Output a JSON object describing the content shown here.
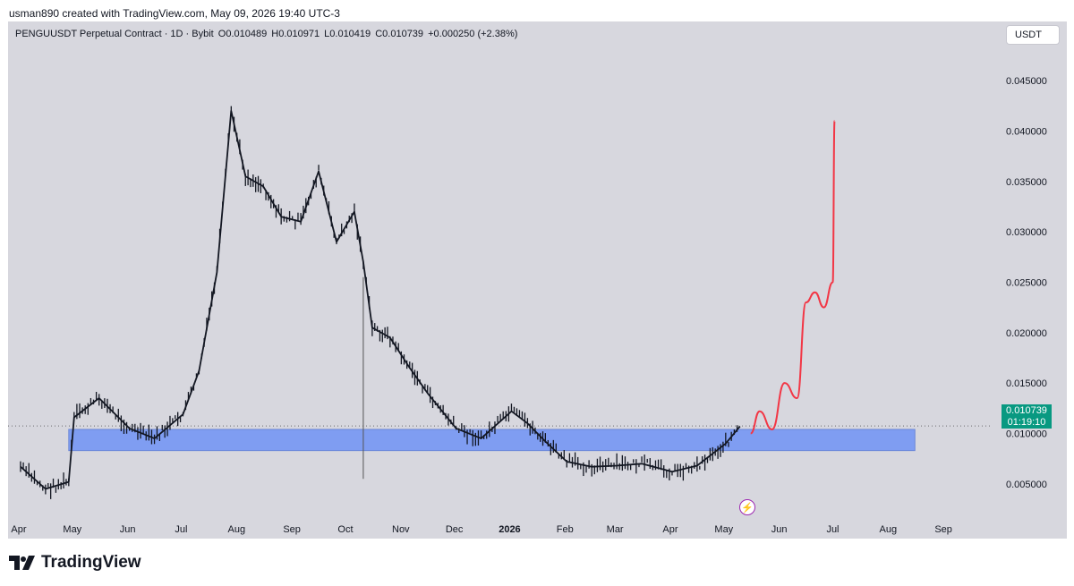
{
  "credit": "usman890 created with TradingView.com, May 09, 2026 19:40 UTC-3",
  "legend": {
    "symbol": "PENGUUSDT Perpetual Contract · 1D · Bybit",
    "open": "O0.010489",
    "high": "H0.010971",
    "low": "L0.010419",
    "close": "C0.010739",
    "change": "+0.000250 (+2.38%)"
  },
  "currency_button": "USDT",
  "price_tag": {
    "price": "0.010739",
    "countdown": "01:19:10"
  },
  "logo_text": "TradingView",
  "colors": {
    "background": "#d7d7de",
    "candle": "#131722",
    "zone": "#7f9df2",
    "forecast": "#f23645",
    "price_tag": "#089981",
    "event_icon": "#9c27b0"
  },
  "icons": {
    "event": "lightning-icon",
    "logo": "tradingview-logo-icon"
  },
  "chart_data": {
    "type": "line",
    "title": "",
    "xlabel": "",
    "ylabel": "",
    "ylim": [
      0.0025,
      0.0482
    ],
    "y_ticks": [
      "0.005000",
      "0.010000",
      "0.015000",
      "0.020000",
      "0.025000",
      "0.030000",
      "0.035000",
      "0.040000",
      "0.045000"
    ],
    "x_ticks": [
      "Apr",
      "May",
      "Jun",
      "Jul",
      "Aug",
      "Sep",
      "Oct",
      "Nov",
      "Dec",
      "2026",
      "Feb",
      "Mar",
      "Apr",
      "May",
      "Jun",
      "Jul",
      "Aug",
      "Sep"
    ],
    "x": [
      "2025-04-01",
      "2025-04-15",
      "2025-04-28",
      "2025-05-01",
      "2025-05-15",
      "2025-06-01",
      "2025-06-15",
      "2025-07-01",
      "2025-07-10",
      "2025-07-20",
      "2025-07-28",
      "2025-08-05",
      "2025-08-15",
      "2025-08-25",
      "2025-09-05",
      "2025-09-15",
      "2025-09-25",
      "2025-10-05",
      "2025-10-10",
      "2025-10-15",
      "2025-10-25",
      "2025-11-05",
      "2025-11-15",
      "2025-12-01",
      "2025-12-15",
      "2026-01-01",
      "2026-01-10",
      "2026-01-20",
      "2026-02-01",
      "2026-02-15",
      "2026-03-01",
      "2026-03-15",
      "2026-04-01",
      "2026-04-15",
      "2026-05-01",
      "2026-05-09"
    ],
    "series": [
      {
        "values": [
          0.0067,
          0.0045,
          0.0052,
          0.0116,
          0.0135,
          0.0105,
          0.0095,
          0.0119,
          0.0162,
          0.026,
          0.042,
          0.0355,
          0.0345,
          0.0315,
          0.031,
          0.036,
          0.029,
          0.032,
          0.027,
          0.0205,
          0.0195,
          0.0165,
          0.014,
          0.0105,
          0.0095,
          0.0122,
          0.011,
          0.0092,
          0.0072,
          0.0067,
          0.0068,
          0.007,
          0.0062,
          0.0068,
          0.009,
          0.0107
        ]
      },
      {
        "x": [
          "2026-05-15",
          "2026-05-20",
          "2026-05-27",
          "2026-06-03",
          "2026-06-10",
          "2026-06-15",
          "2026-06-20",
          "2026-06-25",
          "2026-06-30",
          "2026-07-01"
        ],
        "values": [
          0.01,
          0.0122,
          0.0104,
          0.015,
          0.0135,
          0.023,
          0.024,
          0.0225,
          0.025,
          0.041
        ]
      }
    ],
    "zone": {
      "x_start": "2025-04-28",
      "x_end": "2026-08-15",
      "y_low": 0.0083,
      "y_high": 0.0104
    },
    "last_price": 0.010739
  }
}
